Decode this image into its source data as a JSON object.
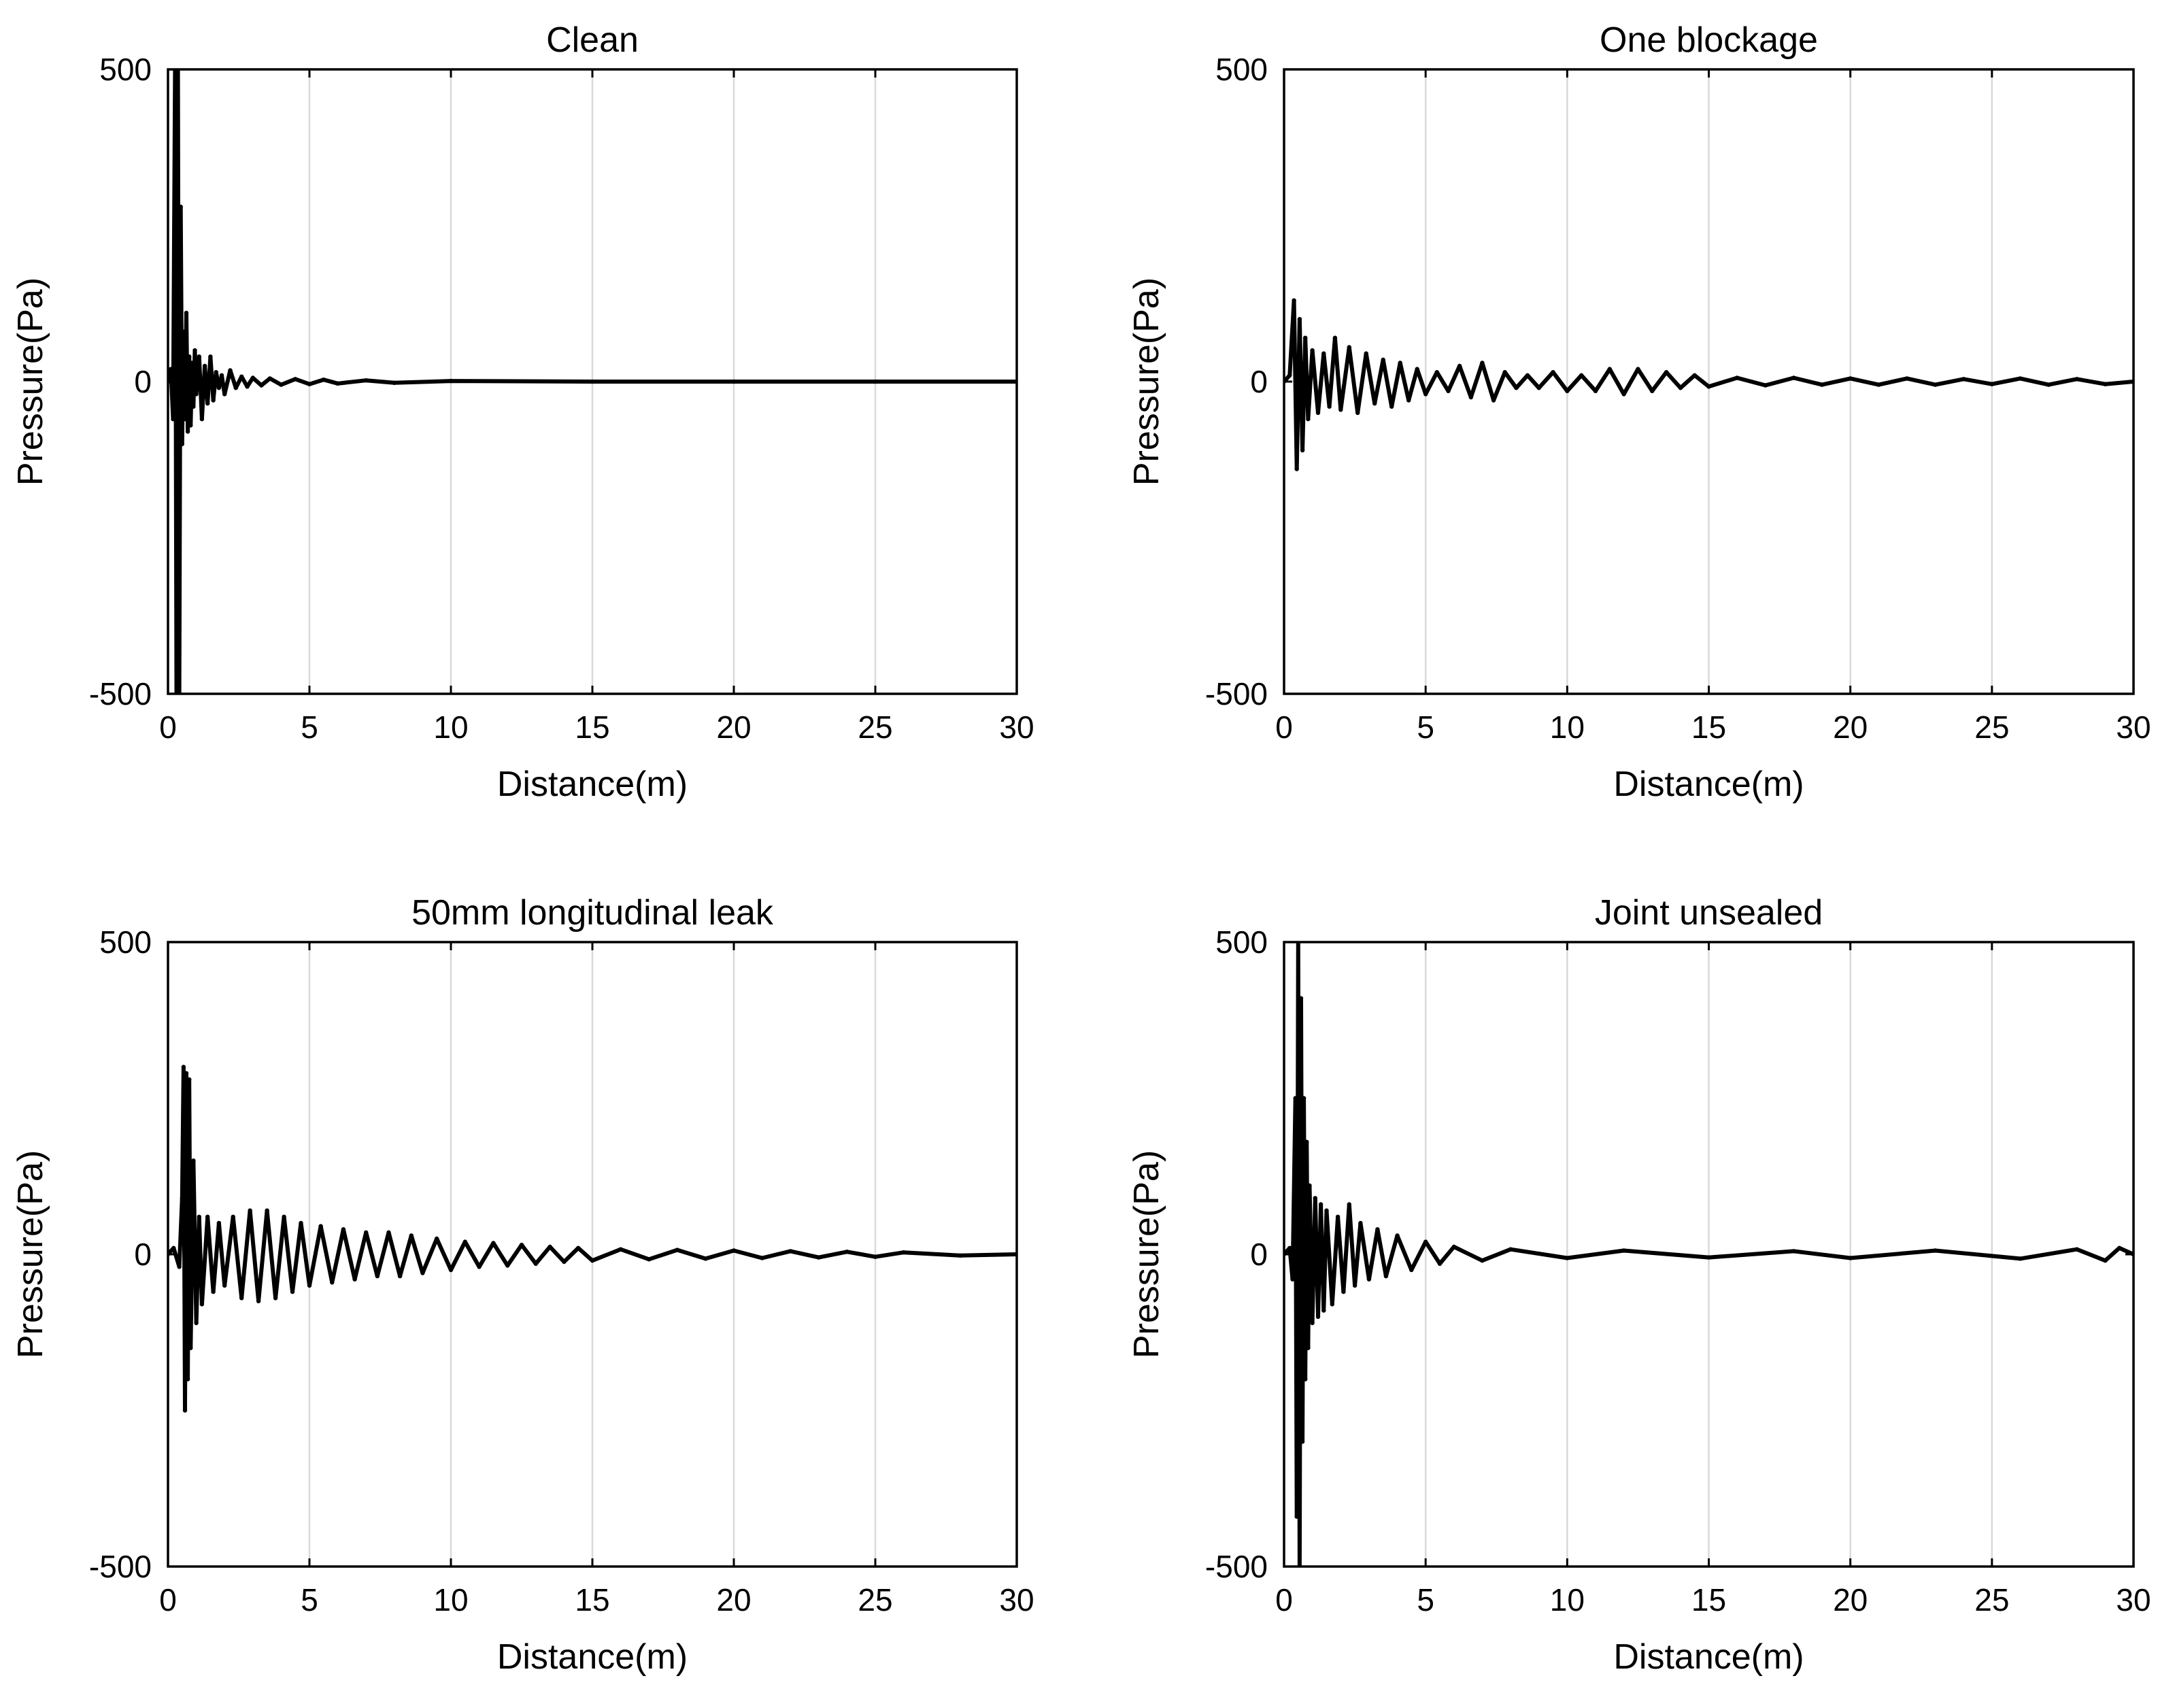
{
  "figure": {
    "background": "#ffffff",
    "line_color": "#000000",
    "grid_color": "#d9d9d9"
  },
  "chart_data": [
    {
      "type": "line",
      "title": "Clean",
      "xlabel": "Distance(m)",
      "ylabel": "Pressure(Pa)",
      "xlim": [
        0,
        30
      ],
      "ylim": [
        -500,
        500
      ],
      "xticks": [
        0,
        5,
        10,
        15,
        20,
        25,
        30
      ],
      "yticks": [
        -500,
        0,
        500
      ],
      "xtick_labels": [
        "0",
        "5",
        "10",
        "15",
        "20",
        "25",
        "30"
      ],
      "ytick_labels": [
        "-500",
        "0",
        "500"
      ],
      "grid": "x",
      "series": [
        {
          "name": "Clean",
          "x": [
            0,
            0.1,
            0.18,
            0.25,
            0.3,
            0.35,
            0.4,
            0.45,
            0.5,
            0.55,
            0.6,
            0.65,
            0.7,
            0.75,
            0.8,
            0.85,
            0.9,
            0.95,
            1.0,
            1.1,
            1.2,
            1.3,
            1.4,
            1.5,
            1.6,
            1.7,
            1.8,
            1.9,
            2.0,
            2.2,
            2.4,
            2.6,
            2.8,
            3.0,
            3.3,
            3.6,
            4.0,
            4.5,
            5.0,
            5.5,
            6.0,
            7.0,
            8.0,
            10.0,
            15.0,
            20.0,
            25.0,
            30.0
          ],
          "y": [
            0,
            20,
            -60,
            500,
            -500,
            500,
            -500,
            280,
            -100,
            80,
            -60,
            110,
            -80,
            40,
            -70,
            30,
            -40,
            50,
            -20,
            40,
            -60,
            25,
            -35,
            40,
            -30,
            15,
            -10,
            10,
            -20,
            18,
            -10,
            8,
            -8,
            6,
            -6,
            5,
            -5,
            4,
            -4,
            3,
            -3,
            2,
            -2,
            1,
            0,
            0,
            0,
            0
          ]
        }
      ]
    },
    {
      "type": "line",
      "title": "One blockage",
      "xlabel": "Distance(m)",
      "ylabel": "Pressure(Pa)",
      "xlim": [
        0,
        30
      ],
      "ylim": [
        -500,
        500
      ],
      "xticks": [
        0,
        5,
        10,
        15,
        20,
        25,
        30
      ],
      "yticks": [
        -500,
        0,
        500
      ],
      "xtick_labels": [
        "0",
        "5",
        "10",
        "15",
        "20",
        "25",
        "30"
      ],
      "ytick_labels": [
        "-500",
        "0",
        "500"
      ],
      "grid": "x",
      "series": [
        {
          "name": "One blockage",
          "x": [
            0,
            0.2,
            0.35,
            0.45,
            0.55,
            0.65,
            0.75,
            0.85,
            1.0,
            1.2,
            1.4,
            1.6,
            1.8,
            2.0,
            2.3,
            2.6,
            2.9,
            3.2,
            3.5,
            3.8,
            4.1,
            4.4,
            4.7,
            5.0,
            5.4,
            5.8,
            6.2,
            6.6,
            7.0,
            7.4,
            7.8,
            8.2,
            8.6,
            9.0,
            9.5,
            10.0,
            10.5,
            11.0,
            11.5,
            12.0,
            12.5,
            13.0,
            13.5,
            14.0,
            14.5,
            15.0,
            16.0,
            17.0,
            18.0,
            19.0,
            20.0,
            21.0,
            22.0,
            23.0,
            24.0,
            25.0,
            26.0,
            27.0,
            28.0,
            29.0,
            30.0
          ],
          "y": [
            0,
            10,
            130,
            -140,
            100,
            -110,
            70,
            -60,
            50,
            -50,
            45,
            -40,
            70,
            -45,
            55,
            -50,
            45,
            -35,
            35,
            -40,
            30,
            -30,
            20,
            -20,
            15,
            -15,
            25,
            -25,
            30,
            -30,
            15,
            -10,
            10,
            -10,
            15,
            -15,
            10,
            -15,
            20,
            -20,
            20,
            -15,
            15,
            -10,
            10,
            -8,
            6,
            -6,
            6,
            -5,
            5,
            -5,
            5,
            -5,
            4,
            -4,
            5,
            -5,
            4,
            -4,
            0
          ]
        }
      ]
    },
    {
      "type": "line",
      "title": "50mm longitudinal leak",
      "xlabel": "Distance(m)",
      "ylabel": "Pressure(Pa)",
      "xlim": [
        0,
        30
      ],
      "ylim": [
        -500,
        500
      ],
      "xticks": [
        0,
        5,
        10,
        15,
        20,
        25,
        30
      ],
      "yticks": [
        -500,
        0,
        500
      ],
      "xtick_labels": [
        "0",
        "5",
        "10",
        "15",
        "20",
        "25",
        "30"
      ],
      "ytick_labels": [
        "-500",
        "0",
        "500"
      ],
      "grid": "x",
      "series": [
        {
          "name": "50mm longitudinal leak",
          "x": [
            0,
            0.2,
            0.4,
            0.5,
            0.55,
            0.6,
            0.65,
            0.7,
            0.75,
            0.8,
            0.9,
            1.0,
            1.1,
            1.2,
            1.4,
            1.6,
            1.8,
            2.0,
            2.3,
            2.6,
            2.9,
            3.2,
            3.5,
            3.8,
            4.1,
            4.4,
            4.7,
            5.0,
            5.4,
            5.8,
            6.2,
            6.6,
            7.0,
            7.4,
            7.8,
            8.2,
            8.6,
            9.0,
            9.5,
            10.0,
            10.5,
            11.0,
            11.5,
            12.0,
            12.5,
            13.0,
            13.5,
            14.0,
            14.5,
            15.0,
            16.0,
            17.0,
            18.0,
            19.0,
            20.0,
            21.0,
            22.0,
            23.0,
            24.0,
            25.0,
            26.0,
            28.0,
            30.0
          ],
          "y": [
            0,
            10,
            -20,
            90,
            300,
            -250,
            290,
            -200,
            280,
            -150,
            150,
            -110,
            60,
            -80,
            60,
            -60,
            50,
            -50,
            60,
            -70,
            70,
            -75,
            70,
            -70,
            60,
            -60,
            50,
            -50,
            45,
            -45,
            40,
            -40,
            35,
            -35,
            35,
            -35,
            30,
            -30,
            25,
            -25,
            20,
            -20,
            18,
            -18,
            15,
            -15,
            12,
            -12,
            10,
            -10,
            8,
            -8,
            7,
            -7,
            6,
            -6,
            5,
            -5,
            4,
            -4,
            3,
            -2,
            0
          ]
        }
      ]
    },
    {
      "type": "line",
      "title": "Joint unsealed",
      "xlabel": "Distance(m)",
      "ylabel": "Pressure(Pa)",
      "xlim": [
        0,
        30
      ],
      "ylim": [
        -500,
        500
      ],
      "xticks": [
        0,
        5,
        10,
        15,
        20,
        25,
        30
      ],
      "yticks": [
        -500,
        0,
        500
      ],
      "xtick_labels": [
        "0",
        "5",
        "10",
        "15",
        "20",
        "25",
        "30"
      ],
      "ytick_labels": [
        "-500",
        "0",
        "500"
      ],
      "grid": "x",
      "series": [
        {
          "name": "Joint unsealed",
          "x": [
            0,
            0.2,
            0.3,
            0.4,
            0.45,
            0.5,
            0.55,
            0.6,
            0.65,
            0.7,
            0.75,
            0.8,
            0.85,
            0.9,
            1.0,
            1.1,
            1.2,
            1.3,
            1.4,
            1.5,
            1.7,
            1.9,
            2.1,
            2.3,
            2.5,
            2.7,
            3.0,
            3.3,
            3.6,
            4.0,
            4.5,
            5.0,
            5.5,
            6.0,
            7.0,
            8.0,
            10.0,
            12.0,
            15.0,
            18.0,
            20.0,
            23.0,
            26.0,
            28.0,
            29.0,
            29.5,
            30.0
          ],
          "y": [
            0,
            10,
            -40,
            250,
            -420,
            500,
            -500,
            410,
            -300,
            250,
            -200,
            180,
            -150,
            110,
            -110,
            90,
            -100,
            80,
            -90,
            70,
            -80,
            60,
            -60,
            80,
            -50,
            50,
            -40,
            40,
            -35,
            30,
            -25,
            20,
            -15,
            12,
            -10,
            8,
            -6,
            6,
            -5,
            5,
            -6,
            6,
            -7,
            8,
            -10,
            10,
            0
          ]
        }
      ]
    }
  ]
}
